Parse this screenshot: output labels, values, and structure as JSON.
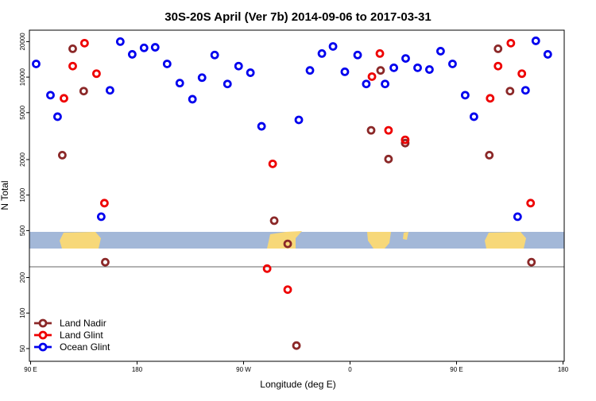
{
  "chart_data": {
    "type": "scatter",
    "title": "30S-20S April (Ver 7b)   2014-09-06 to 2017-03-31",
    "x_label": "Longitude (deg E)",
    "y_label": "N Total",
    "log_y": true,
    "legend": "bottom-left",
    "xlim": [
      89,
      541
    ],
    "ylim": [
      39,
      25000
    ],
    "xticks": [
      {
        "value": 90,
        "label": "90 E"
      },
      {
        "value": 180,
        "label": "180"
      },
      {
        "value": 270,
        "label": "90 W"
      },
      {
        "value": 360,
        "label": "0"
      },
      {
        "value": 450,
        "label": "90 E"
      },
      {
        "value": 540,
        "label": "180"
      }
    ],
    "yticks": [
      50,
      100,
      200,
      500,
      1000,
      2000,
      5000,
      10000,
      20000
    ],
    "series": [
      {
        "name": "Land Nadir",
        "color": "#8b2828",
        "x": [
          116.8,
          125.6,
          134.9,
          153.1,
          295.9,
          307.3,
          314.7,
          377.8,
          385.8,
          392.5,
          406.6,
          477.7,
          485.1,
          495.2,
          513.3
        ],
        "values": [
          2180,
          17400,
          7610,
          270,
          607,
          386,
          53,
          3540,
          11400,
          2020,
          2760,
          2180,
          17400,
          7610,
          270
        ]
      },
      {
        "name": "Land Glint",
        "color": "#ee0000",
        "x": [
          118.2,
          125.6,
          135.6,
          145.7,
          152.4,
          294.6,
          289.9,
          307.3,
          378.5,
          385.2,
          392.5,
          406.6,
          478.4,
          485.1,
          495.9,
          505.2,
          512.6
        ],
        "values": [
          6610,
          12400,
          19400,
          10700,
          855,
          1840,
          238,
          158,
          10100,
          15850,
          3540,
          2940,
          6610,
          12400,
          19400,
          10700,
          855
        ]
      },
      {
        "name": "Ocean Glint",
        "color": "#0000ee",
        "x": [
          94.7,
          106.8,
          112.8,
          149.7,
          157.1,
          165.8,
          175.9,
          185.9,
          195.3,
          205.4,
          216.1,
          226.8,
          234.9,
          245.6,
          256.4,
          265.8,
          275.8,
          285.2,
          316.7,
          326.1,
          336.2,
          345.6,
          355.6,
          366.4,
          373.7,
          389.6,
          397.0,
          407.0,
          417.1,
          427.1,
          436.5,
          446.6,
          457.3,
          464.7,
          501.6,
          508.3,
          517.0,
          527.1
        ],
        "values": [
          12940,
          7030,
          4620,
          656,
          7730,
          20000,
          15600,
          17700,
          17900,
          12940,
          8900,
          6500,
          9900,
          15400,
          8750,
          12400,
          10900,
          3830,
          4340,
          11400,
          15850,
          18200,
          11100,
          15400,
          8750,
          8750,
          12000,
          14400,
          12000,
          11600,
          16600,
          12940,
          7030,
          4620,
          656,
          7730,
          20300,
          15600
        ]
      }
    ]
  }
}
